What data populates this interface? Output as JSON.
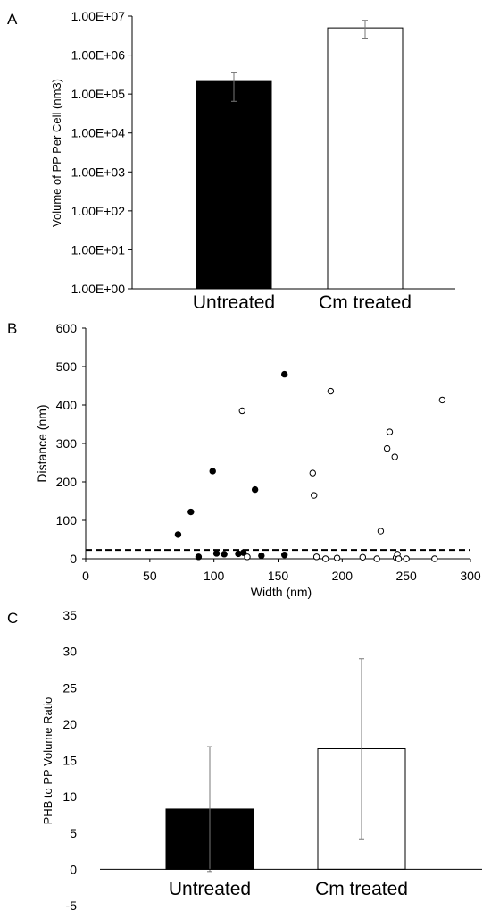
{
  "chart_data": [
    {
      "panel_label": "A",
      "type": "bar",
      "scale": "log",
      "ylabel": "Volume of PP Per Cell (nm3)",
      "categories": [
        "Untreated",
        "Cm treated"
      ],
      "values": [
        210000,
        5000000
      ],
      "error_low": [
        65000,
        2600000
      ],
      "error_high": [
        350000,
        7800000
      ],
      "bar_fills": [
        "#000000",
        "#ffffff"
      ],
      "ylim": [
        1,
        10000000
      ],
      "y_ticks": [
        1,
        10,
        100,
        1000,
        10000,
        100000,
        1000000,
        10000000
      ],
      "y_tick_labels": [
        "1.00E+00",
        "1.00E+01",
        "1.00E+02",
        "1.00E+03",
        "1.00E+04",
        "1.00E+05",
        "1.00E+06",
        "1.00E+07"
      ],
      "grid": false
    },
    {
      "panel_label": "B",
      "type": "scatter",
      "xlabel": "Width (nm)",
      "ylabel": "Distance (nm)",
      "xlim": [
        0,
        300
      ],
      "ylim": [
        0,
        600
      ],
      "x_ticks": [
        0,
        50,
        100,
        150,
        200,
        250,
        300
      ],
      "y_ticks": [
        0,
        100,
        200,
        300,
        400,
        500,
        600
      ],
      "series": [
        {
          "marker": "filled",
          "x": [
            72,
            82,
            88,
            99,
            102,
            108,
            119,
            123,
            132,
            137,
            155,
            155
          ],
          "y": [
            63,
            122,
            5,
            228,
            14,
            12,
            13,
            16,
            180,
            8,
            480,
            10
          ]
        },
        {
          "marker": "open",
          "x": [
            122,
            126,
            177,
            178,
            180,
            187,
            196,
            216,
            227,
            230,
            235,
            237,
            241,
            242,
            243,
            244,
            250,
            272,
            278,
            191
          ],
          "y": [
            385,
            5,
            223,
            165,
            5,
            0,
            2,
            4,
            0,
            72,
            287,
            330,
            265,
            3,
            12,
            0,
            0,
            0,
            413,
            436
          ]
        }
      ],
      "reference_line": {
        "y": 23,
        "style": "dashed"
      },
      "grid": false
    },
    {
      "panel_label": "C",
      "type": "bar",
      "ylabel": "PHB to PP Volume Ratio",
      "categories": [
        "Untreated",
        "Cm treated"
      ],
      "values": [
        8.3,
        16.6
      ],
      "error_low": [
        -0.3,
        4.2
      ],
      "error_high": [
        16.9,
        29.0
      ],
      "bar_fills": [
        "#000000",
        "#ffffff"
      ],
      "ylim": [
        -5,
        35
      ],
      "y_ticks": [
        -5,
        0,
        5,
        10,
        15,
        20,
        25,
        30,
        35
      ],
      "grid": false
    }
  ]
}
